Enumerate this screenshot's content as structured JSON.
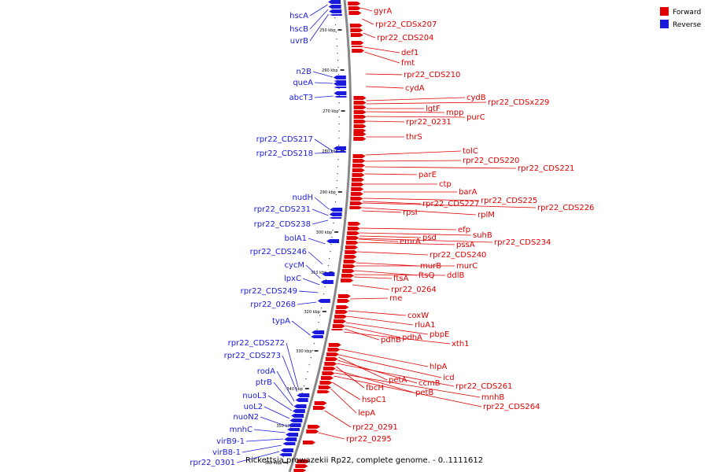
{
  "caption": "Rickettsia prowazekii Rp22, complete genome. - 0..1111612",
  "legend": [
    {
      "label": "Forward",
      "color": "#e00000"
    },
    {
      "label": "Reverse",
      "color": "#1a1adc"
    }
  ],
  "ticks": [
    "250 kbp",
    "260 kbp",
    "270 kbp",
    "280 kbp",
    "290 kbp",
    "300 kbp",
    "310 kbp",
    "320 kbp",
    "330 kbp",
    "340 kbp",
    "350 kbp",
    "360 kbp"
  ],
  "forward_labels": [
    "gyrA",
    "rpr22_CDSx207",
    "rpr22_CDS204",
    "def1",
    "fmt",
    "rpr22_CDS210",
    "cydA",
    "cydB",
    "rpr22_CDSx229",
    "lgtF",
    "mpp",
    "purC",
    "rpr22_0231",
    "thrS",
    "tolC",
    "rpr22_CDS220",
    "rpr22_CDS221",
    "parE",
    "ctp",
    "barA",
    "rpr22_CDS225",
    "rpr22_CDS226",
    "rpr22_CDS227",
    "rplM",
    "rpsI",
    "efp",
    "suhB",
    "psd",
    "rpr22_CDS234",
    "emrA",
    "pssA",
    "rpr22_CDS240",
    "murB",
    "murC",
    "ftsQ",
    "ddlB",
    "ftsA",
    "rpr22_0264",
    "rne",
    "coxW",
    "rluA1",
    "pbpE",
    "pdhA",
    "pdhB",
    "xth1",
    "hlpA",
    "icd",
    "petA",
    "ccmB",
    "rpr22_CDS261",
    "fbcH",
    "petB",
    "mnhB",
    "rpr22_CDS264",
    "hspC1",
    "lepA",
    "rpr22_0291",
    "rpr22_0295"
  ],
  "reverse_labels": [
    "hscA",
    "hscB",
    "uvrB",
    "n2B",
    "queA",
    "abcT3",
    "rpr22_CDS217",
    "rpr22_CDS218",
    "nudH",
    "rpr22_CDS231",
    "rpr22_CDS238",
    "bolA1",
    "rpr22_CDS246",
    "cycM",
    "lpxC",
    "rpr22_CDS249",
    "rpr22_0268",
    "typA",
    "rpr22_CDS272",
    "rpr22_CDS273",
    "rodA",
    "ptrB",
    "nuoL3",
    "uoL2",
    "nuoN2",
    "mnhC",
    "virB9-1",
    "virB8-1",
    "rpr22_0301"
  ]
}
